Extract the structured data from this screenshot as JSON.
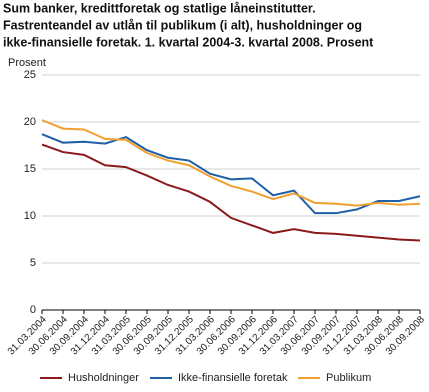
{
  "chart_data": {
    "type": "line",
    "title": [
      "Sum banker, kredittforetak og statlige låneinstitutter.",
      "Fastrenteandel av utlån til publikum (i alt), husholdninger og",
      "ikke-finansielle foretak. 1. kvartal 2004-3. kvartal 2008. Prosent"
    ],
    "ylabel": "Prosent",
    "categories": [
      "31.03.2004",
      "30.06.2004",
      "30.09.2004",
      "31.12.2004",
      "31.03.2005",
      "30.06.2005",
      "30.09.2005",
      "31.12.2005",
      "31.03.2006",
      "30.06.2006",
      "30.09.2006",
      "31.12.2006",
      "31.03.2007",
      "30.06.2007",
      "30.09.2007",
      "31.12.2007",
      "31.03.2008",
      "30.06.2008",
      "30.09.2008"
    ],
    "series": [
      {
        "name": "Husholdninger",
        "color": "#8b1a1a",
        "values": [
          17.6,
          16.8,
          16.5,
          15.4,
          15.2,
          14.3,
          13.3,
          12.6,
          11.5,
          9.8,
          9.0,
          8.2,
          8.6,
          8.2,
          8.1,
          7.9,
          7.7,
          7.5,
          7.4
        ]
      },
      {
        "name": "Ikke-finansielle foretak",
        "color": "#1f5fa8",
        "values": [
          18.7,
          17.8,
          17.9,
          17.7,
          18.4,
          17.0,
          16.2,
          15.9,
          14.5,
          13.9,
          14.0,
          12.2,
          12.7,
          10.3,
          10.3,
          10.7,
          11.6,
          11.6,
          12.1
        ]
      },
      {
        "name": "Publikum",
        "color": "#f0a030",
        "values": [
          20.2,
          19.3,
          19.2,
          18.2,
          18.1,
          16.7,
          15.9,
          15.4,
          14.2,
          13.2,
          12.6,
          11.8,
          12.4,
          11.4,
          11.3,
          11.1,
          11.4,
          11.2,
          11.3
        ]
      }
    ],
    "ylim": [
      0,
      25
    ],
    "yticks": [
      0,
      5,
      10,
      15,
      20,
      25
    ],
    "grid": true,
    "legend": "bottom"
  }
}
